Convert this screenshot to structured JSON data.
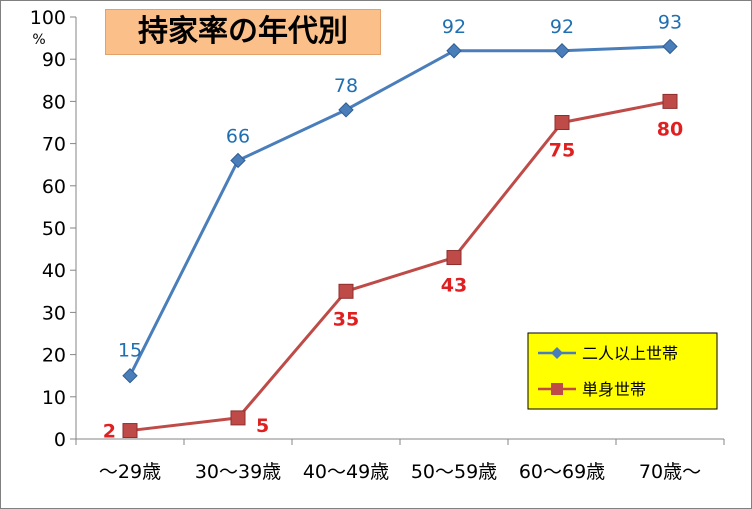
{
  "chart_data": {
    "type": "line",
    "title": "持家率の年代別",
    "ylabel": "%",
    "ylim": [
      0,
      100
    ],
    "ytick_step": 10,
    "grid": false,
    "legend_position": "bottom-right",
    "categories": [
      "～29歳",
      "30～39歳",
      "40～49歳",
      "50～59歳",
      "60～69歳",
      "70歳～"
    ],
    "series": [
      {
        "name": "二人以上世帯",
        "values": [
          15,
          66,
          78,
          92,
          92,
          93
        ],
        "color": "#4a7ebb",
        "label_color": "#1f6fb2",
        "marker": "diamond"
      },
      {
        "name": "単身世帯",
        "values": [
          2,
          5,
          35,
          43,
          75,
          80
        ],
        "color": "#be4b48",
        "label_color": "#e02020",
        "marker": "square"
      }
    ],
    "legend_background": "#ffff00"
  }
}
